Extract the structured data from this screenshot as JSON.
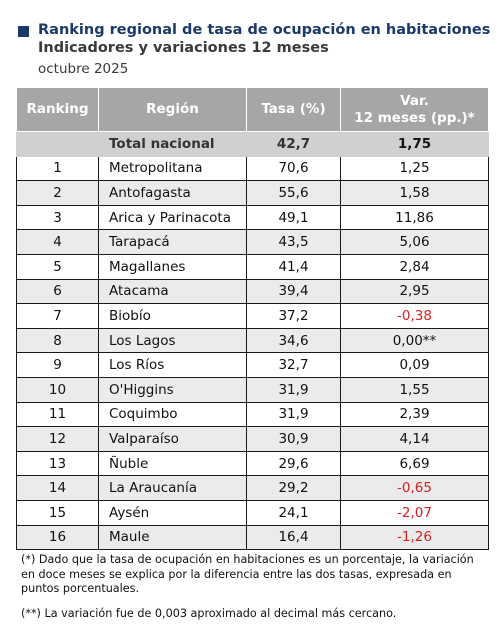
{
  "title": "Ranking regional de tasa de ocupación en habitaciones",
  "subtitle": "Indicadores y variaciones 12 meses",
  "period": "octubre 2025",
  "table": {
    "headers": [
      "Ranking",
      "Región",
      "Tasa (%)",
      "Var.",
      "12 meses (pp.)*"
    ],
    "total": {
      "label": "Total nacional",
      "rate": "42,7",
      "var": "1,75"
    },
    "rows": [
      {
        "rank": "1",
        "region": "Metropolitana",
        "rate": "70,6",
        "var": "1,25"
      },
      {
        "rank": "2",
        "region": "Antofagasta",
        "rate": "55,6",
        "var": "1,58"
      },
      {
        "rank": "3",
        "region": "Arica y Parinacota",
        "rate": "49,1",
        "var": "11,86"
      },
      {
        "rank": "4",
        "region": "Tarapacá",
        "rate": "43,5",
        "var": "5,06"
      },
      {
        "rank": "5",
        "region": "Magallanes",
        "rate": "41,4",
        "var": "2,84"
      },
      {
        "rank": "6",
        "region": "Atacama",
        "rate": "39,4",
        "var": "2,95"
      },
      {
        "rank": "7",
        "region": "Biobío",
        "rate": "37,2",
        "var": "-0,38"
      },
      {
        "rank": "8",
        "region": "Los Lagos",
        "rate": "34,6",
        "var": "0,00**"
      },
      {
        "rank": "9",
        "region": "Los Ríos",
        "rate": "32,7",
        "var": "0,09"
      },
      {
        "rank": "10",
        "region": "O'Higgins",
        "rate": "31,9",
        "var": "1,55"
      },
      {
        "rank": "11",
        "region": "Coquimbo",
        "rate": "31,9",
        "var": "2,39"
      },
      {
        "rank": "12",
        "region": "Valparaíso",
        "rate": "30,9",
        "var": "4,14"
      },
      {
        "rank": "13",
        "region": "Ñuble",
        "rate": "29,6",
        "var": "6,69"
      },
      {
        "rank": "14",
        "region": "La Araucanía",
        "rate": "29,2",
        "var": "-0,65"
      },
      {
        "rank": "15",
        "region": "Aysén",
        "rate": "24,1",
        "var": "-2,07"
      },
      {
        "rank": "16",
        "region": "Maule",
        "rate": "16,4",
        "var": "-1,26"
      }
    ]
  },
  "notes": [
    "(*) Dado que la tasa de ocupación en habitaciones es un porcentaje, la variación en doce meses se explica por la diferencia entre las dos tasas, expresada en puntos porcentuales.",
    "(**) La variación fue de 0,003 aproximado al decimal más cercano."
  ],
  "colors": {
    "title": "#1b3a6b",
    "header_bg": "#a6a6a6",
    "negative": "#d62020"
  }
}
